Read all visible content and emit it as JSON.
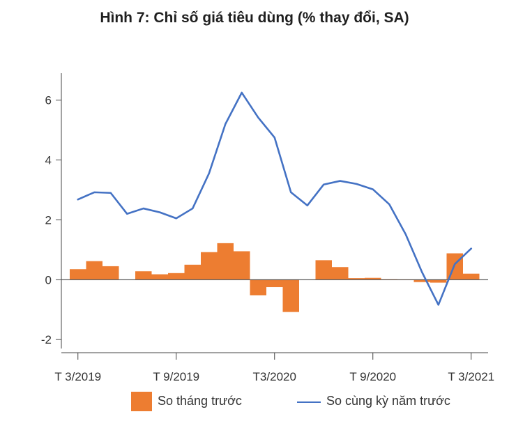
{
  "title": "Hình 7: Chỉ số giá tiêu dùng (% thay đổi, SA)",
  "colors": {
    "bar": "#ED7D31",
    "line": "#4472C4",
    "axis": "#444444"
  },
  "legend": {
    "bar_label": "So tháng trước",
    "line_label": "So cùng kỳ năm trước"
  },
  "chart_data": {
    "type": "bar+line",
    "title": "Hình 7: Chỉ số giá tiêu dùng (% thay đổi, SA)",
    "x": [
      "T 3/2019",
      "T 4/2019",
      "T 5/2019",
      "T 6/2019",
      "T 7/2019",
      "T 8/2019",
      "T 9/2019",
      "T 10/2019",
      "T 11/2019",
      "T 12/2019",
      "T 1/2020",
      "T 2/2020",
      "T3/2020",
      "T 4/2020",
      "T 5/2020",
      "T 6/2020",
      "T 7/2020",
      "T 8/2020",
      "T 9/2020",
      "T 10/2020",
      "T 11/2020",
      "T 12/2020",
      "T 1/2021",
      "T 2/2021",
      "T 3/2021"
    ],
    "x_tick_labels": [
      "T 3/2019",
      "T 9/2019",
      "T3/2020",
      "T 9/2020",
      "T 3/2021"
    ],
    "x_tick_indices": [
      0,
      6,
      12,
      18,
      24
    ],
    "ylim": [
      -2.3,
      6.9
    ],
    "yticks": [
      -2,
      0,
      2,
      4,
      6
    ],
    "series": [
      {
        "name": "So tháng trước",
        "type": "bar",
        "values": [
          0.35,
          0.62,
          0.45,
          0.0,
          0.28,
          0.18,
          0.22,
          0.5,
          0.92,
          1.22,
          0.95,
          -0.52,
          -0.25,
          -1.08,
          0.0,
          0.65,
          0.42,
          0.05,
          0.06,
          0.02,
          0.01,
          -0.08,
          -0.1,
          0.88,
          0.2
        ]
      },
      {
        "name": "So cùng kỳ năm trước",
        "type": "line",
        "values": [
          2.68,
          2.92,
          2.9,
          2.2,
          2.38,
          2.25,
          2.05,
          2.38,
          3.55,
          5.2,
          6.25,
          5.42,
          4.75,
          2.92,
          2.48,
          3.18,
          3.3,
          3.2,
          3.02,
          2.52,
          1.52,
          0.25,
          -0.84,
          0.52,
          1.04
        ]
      }
    ],
    "grid": false,
    "legend_position": "bottom"
  }
}
